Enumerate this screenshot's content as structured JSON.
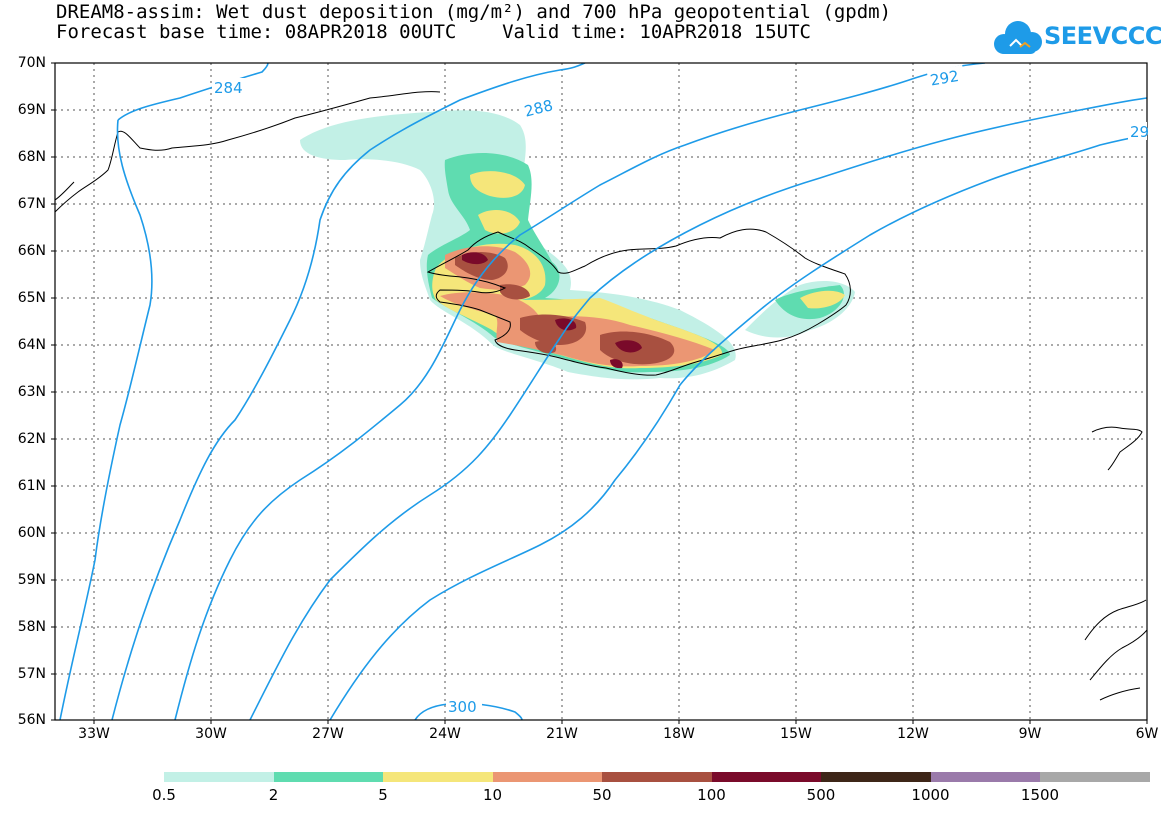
{
  "title_line1": "DREAM8-assim: Wet dust deposition (mg/m²) and 700 hPa geopotential (gpdm)",
  "title_line2": "Forecast base time: 08APR2018 00UTC    Valid time: 10APR2018 15UTC",
  "logo_text": "SEEVCCC",
  "lat_labels": [
    "70N",
    "69N",
    "68N",
    "67N",
    "66N",
    "65N",
    "64N",
    "63N",
    "62N",
    "61N",
    "60N",
    "59N",
    "58N",
    "57N",
    "56N"
  ],
  "lon_labels": [
    "33W",
    "30W",
    "27W",
    "24W",
    "21W",
    "18W",
    "15W",
    "12W",
    "9W",
    "6W"
  ],
  "contour_labels": [
    "284",
    "288",
    "292",
    "29",
    "300"
  ],
  "colorbar": {
    "colors": [
      "#c2f0e6",
      "#5fdcb0",
      "#f5e67a",
      "#eb9673",
      "#a85040",
      "#7a0a2a",
      "#3e2618",
      "#9a7aaa",
      "#a8a8a8"
    ],
    "labels": [
      "0.5",
      "2",
      "5",
      "10",
      "50",
      "100",
      "500",
      "1000",
      "1500"
    ]
  },
  "colors": {
    "contour": "#1e9be8",
    "coast": "#000000"
  }
}
